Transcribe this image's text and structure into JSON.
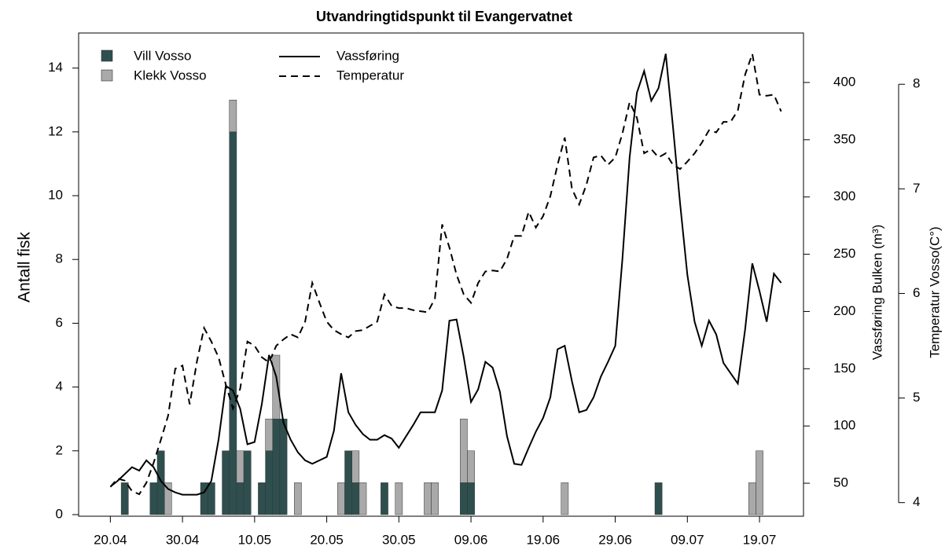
{
  "chart_data": {
    "type": "bar",
    "stacked": true,
    "title": "Utvandringtidspunkt til Evangervatnet",
    "y_label": "Antall fisk",
    "y2_label": "Vassføring Bulken (m³)",
    "y3_label": "Temperatur Vosso(C°)",
    "xlim": [
      -4.4,
      96.1
    ],
    "xticks": [
      {
        "value": 0,
        "label": "20.04"
      },
      {
        "value": 10,
        "label": "30.04"
      },
      {
        "value": 20,
        "label": "10.05"
      },
      {
        "value": 30,
        "label": "20.05"
      },
      {
        "value": 40,
        "label": "30.05"
      },
      {
        "value": 50,
        "label": "09.06"
      },
      {
        "value": 60,
        "label": "19.06"
      },
      {
        "value": 70,
        "label": "29.06"
      },
      {
        "value": 80,
        "label": "09.07"
      },
      {
        "value": 90,
        "label": "19.07"
      }
    ],
    "ylim": [
      -0.05,
      15.1
    ],
    "yticks": [
      0,
      2,
      4,
      6,
      8,
      10,
      12,
      14
    ],
    "y2lim": [
      21.2,
      443.2
    ],
    "y2ticks": [
      50,
      100,
      150,
      200,
      250,
      300,
      350,
      400
    ],
    "y3lim": [
      3.87,
      8.49
    ],
    "y3ticks": [
      4,
      5,
      6,
      7,
      8
    ],
    "x": [
      2,
      6,
      7,
      8,
      13,
      14,
      16,
      17,
      18,
      19,
      21,
      22,
      23,
      24,
      26,
      32,
      33,
      34,
      35,
      38,
      40,
      44,
      45,
      49,
      50,
      63,
      76,
      89,
      90
    ],
    "series": [
      {
        "name": "Vill Vosso",
        "color": "#2f4f4f",
        "values": [
          1,
          1,
          2,
          0,
          1,
          1,
          2,
          12,
          1,
          2,
          1,
          2,
          3,
          3,
          0,
          0,
          2,
          1,
          0,
          1,
          0,
          0,
          0,
          1,
          1,
          0,
          1,
          0,
          0
        ]
      },
      {
        "name": "Klekk Vosso",
        "color": "#a9a9a9",
        "values": [
          0,
          0,
          0,
          1,
          0,
          0,
          0,
          1,
          1,
          0,
          0,
          1,
          2,
          0,
          1,
          1,
          0,
          1,
          1,
          0,
          1,
          1,
          1,
          2,
          1,
          1,
          0,
          1,
          2
        ]
      }
    ],
    "lines": [
      {
        "name": "Vassføring",
        "type": "line",
        "axis": "y2",
        "color": "#000000",
        "dash": "solid",
        "x": [
          0,
          1,
          2,
          3,
          4,
          5,
          6,
          7,
          8,
          9,
          10,
          11,
          12,
          13,
          14,
          15,
          16,
          17,
          18,
          19,
          20,
          21,
          22,
          23,
          24,
          25,
          26,
          27,
          28,
          29,
          30,
          31,
          32,
          33,
          34,
          35,
          36,
          37,
          38,
          39,
          40,
          41,
          42,
          43,
          44,
          45,
          46,
          47,
          48,
          49,
          50,
          51,
          52,
          53,
          54,
          55,
          56,
          57,
          58,
          59,
          60,
          61,
          62,
          63,
          64,
          65,
          66,
          67,
          68,
          69,
          70,
          71,
          72,
          73,
          74,
          75,
          76,
          77,
          78,
          79,
          80,
          81,
          82,
          83,
          84,
          85,
          86,
          87,
          88,
          89,
          90,
          91,
          92,
          93
        ],
        "values": [
          47,
          52,
          58,
          64,
          61,
          70,
          64,
          52,
          45,
          42,
          40,
          40,
          40,
          42,
          52,
          88,
          135,
          131,
          115,
          84,
          86,
          119,
          162,
          143,
          103,
          88,
          77,
          70,
          67,
          70,
          73,
          96,
          146,
          112,
          101,
          93,
          88,
          88,
          92,
          89,
          81,
          91,
          101,
          112,
          112,
          112,
          131,
          192,
          193,
          160,
          121,
          132,
          156,
          151,
          130,
          91,
          67,
          66,
          81,
          95,
          107,
          125,
          167,
          170,
          139,
          112,
          114,
          125,
          143,
          156,
          170,
          246,
          335,
          391,
          410,
          384,
          395,
          425,
          362,
          294,
          232,
          191,
          170,
          192,
          180,
          155,
          146,
          137,
          184,
          242,
          218,
          191,
          233,
          225
        ]
      },
      {
        "name": "Temperatur",
        "type": "line",
        "axis": "y3",
        "color": "#000000",
        "dash": "dashed",
        "x": [
          0,
          1,
          2,
          3,
          4,
          5,
          6,
          7,
          8,
          9,
          10,
          11,
          12,
          13,
          14,
          15,
          16,
          17,
          18,
          19,
          20,
          21,
          22,
          23,
          24,
          25,
          26,
          27,
          28,
          29,
          30,
          31,
          32,
          33,
          34,
          35,
          36,
          37,
          38,
          39,
          40,
          41,
          42,
          43,
          44,
          45,
          46,
          47,
          48,
          49,
          50,
          51,
          52,
          53,
          54,
          55,
          56,
          57,
          58,
          59,
          60,
          61,
          62,
          63,
          64,
          65,
          66,
          67,
          68,
          69,
          70,
          71,
          72,
          73,
          74,
          75,
          76,
          77,
          78,
          79,
          80,
          81,
          82,
          83,
          84,
          85,
          86,
          87,
          88,
          89,
          90,
          91,
          92,
          93
        ],
        "values": [
          4.15,
          4.23,
          4.21,
          4.11,
          4.08,
          4.19,
          4.38,
          4.6,
          4.83,
          5.28,
          5.31,
          4.94,
          5.35,
          5.67,
          5.54,
          5.39,
          5.13,
          4.9,
          5.09,
          5.54,
          5.5,
          5.39,
          5.34,
          5.5,
          5.56,
          5.61,
          5.58,
          5.73,
          6.1,
          5.91,
          5.73,
          5.65,
          5.61,
          5.58,
          5.64,
          5.65,
          5.69,
          5.73,
          5.99,
          5.88,
          5.86,
          5.86,
          5.84,
          5.83,
          5.82,
          5.95,
          6.66,
          6.44,
          6.18,
          5.99,
          5.91,
          6.1,
          6.21,
          6.22,
          6.21,
          6.33,
          6.55,
          6.55,
          6.78,
          6.63,
          6.74,
          6.93,
          7.23,
          7.49,
          7.0,
          6.85,
          7.04,
          7.3,
          7.32,
          7.23,
          7.3,
          7.53,
          7.83,
          7.68,
          7.34,
          7.38,
          7.3,
          7.34,
          7.23,
          7.19,
          7.26,
          7.34,
          7.44,
          7.56,
          7.54,
          7.64,
          7.64,
          7.75,
          8.09,
          8.29,
          7.9,
          7.89,
          7.9,
          7.74
        ]
      }
    ]
  }
}
